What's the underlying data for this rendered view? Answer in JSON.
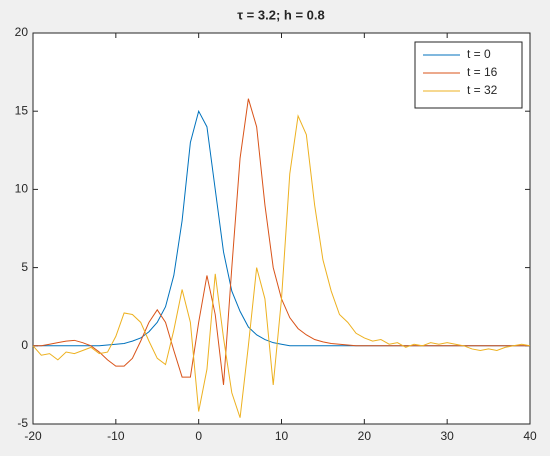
{
  "chart_data": {
    "type": "line",
    "title": "τ = 3.2; h = 0.8",
    "x": [
      -20,
      -19,
      -18,
      -17,
      -16,
      -15,
      -14,
      -13,
      -12,
      -11,
      -10,
      -9,
      -8,
      -7,
      -6,
      -5,
      -4,
      -3,
      -2,
      -1,
      0,
      1,
      2,
      3,
      4,
      5,
      6,
      7,
      8,
      9,
      10,
      11,
      12,
      13,
      14,
      15,
      16,
      17,
      18,
      19,
      20,
      21,
      22,
      23,
      24,
      25,
      26,
      27,
      28,
      29,
      30,
      31,
      32,
      33,
      34,
      35,
      36,
      37,
      38,
      39,
      40
    ],
    "series": [
      {
        "name": "t = 0",
        "color": "#0072BD",
        "values": [
          0,
          0,
          0,
          0,
          0,
          0,
          0,
          0,
          0,
          0.05,
          0.1,
          0.15,
          0.3,
          0.5,
          0.9,
          1.5,
          2.5,
          4.5,
          8,
          13,
          15,
          14,
          10,
          6,
          3.5,
          2.2,
          1.2,
          0.7,
          0.4,
          0.2,
          0.1,
          0,
          0,
          0,
          0,
          0,
          0,
          0,
          0,
          0,
          0,
          0,
          0,
          0,
          0,
          0,
          0,
          0,
          0,
          0,
          0,
          0,
          0,
          0,
          0,
          0,
          0,
          0,
          0,
          0,
          0
        ]
      },
      {
        "name": "t = 16",
        "color": "#D95319",
        "values": [
          0,
          0,
          0.1,
          0.2,
          0.3,
          0.35,
          0.2,
          0,
          -0.4,
          -0.9,
          -1.3,
          -1.3,
          -0.8,
          0.3,
          1.5,
          2.3,
          1.5,
          -0.3,
          -2,
          -2,
          1.5,
          4.5,
          2,
          -2.5,
          5,
          12,
          15.8,
          14,
          9,
          5,
          3,
          1.8,
          1.1,
          0.7,
          0.4,
          0.25,
          0.15,
          0.1,
          0.05,
          0,
          0,
          0,
          0,
          0,
          0,
          0,
          0,
          0,
          0,
          0,
          0,
          0,
          0,
          0,
          0,
          0,
          0,
          0,
          0,
          0,
          0
        ]
      },
      {
        "name": "t = 32",
        "color": "#EDB120",
        "values": [
          0,
          -0.6,
          -0.5,
          -0.9,
          -0.4,
          -0.5,
          -0.3,
          -0.1,
          -0.5,
          -0.4,
          0.6,
          2.1,
          2,
          1.5,
          0.3,
          -0.8,
          -1.2,
          1,
          3.6,
          1.5,
          -4.2,
          -1.5,
          4.6,
          0.5,
          -3,
          -4.6,
          0,
          5,
          3,
          -2.5,
          3,
          11,
          14.7,
          13.5,
          9,
          5.5,
          3.5,
          2,
          1.5,
          0.8,
          0.5,
          0.3,
          0.4,
          0.1,
          0.2,
          -0.1,
          0.1,
          0,
          0.2,
          0.1,
          0.2,
          0.1,
          0,
          -0.2,
          -0.3,
          -0.2,
          -0.3,
          -0.1,
          0,
          0.1,
          0
        ]
      }
    ],
    "xlim": [
      -20,
      40
    ],
    "xticks": [
      -20,
      -10,
      0,
      10,
      20,
      30,
      40
    ],
    "ylim": [
      -5,
      20
    ],
    "yticks": [
      -5,
      0,
      5,
      10,
      15,
      20
    ],
    "grid": false,
    "legend": "northeast"
  }
}
